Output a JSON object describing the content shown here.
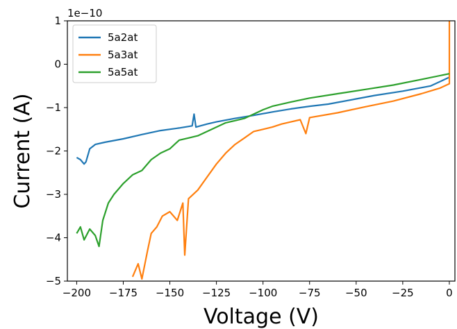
{
  "chart_data": {
    "type": "line",
    "xlabel": "Voltage (V)",
    "ylabel": "Current (A)",
    "y_offset_label": "1e−10",
    "xlim": [
      -205,
      3
    ],
    "ylim": [
      -5,
      1
    ],
    "x_ticks": [
      -200,
      -175,
      -150,
      -125,
      -100,
      -75,
      -50,
      -25,
      0
    ],
    "x_tick_labels": [
      "−200",
      "−175",
      "−150",
      "−125",
      "−100",
      "−75",
      "−50",
      "−25",
      "0"
    ],
    "y_ticks": [
      1,
      0,
      -1,
      -2,
      -3,
      -4,
      -5
    ],
    "y_tick_labels": [
      "1",
      "0",
      "−1",
      "−2",
      "−3",
      "−4",
      "−5"
    ],
    "grid": false,
    "legend_position": "top-left",
    "series": [
      {
        "name": "5a2at",
        "color": "#1f77b4",
        "points": [
          [
            -200,
            -2.15
          ],
          [
            -198,
            -2.2
          ],
          [
            -196,
            -2.3
          ],
          [
            -195,
            -2.25
          ],
          [
            -193,
            -1.95
          ],
          [
            -190,
            -1.85
          ],
          [
            -185,
            -1.8
          ],
          [
            -175,
            -1.72
          ],
          [
            -165,
            -1.62
          ],
          [
            -155,
            -1.53
          ],
          [
            -145,
            -1.47
          ],
          [
            -138,
            -1.42
          ],
          [
            -137,
            -1.15
          ],
          [
            -136,
            -1.45
          ],
          [
            -130,
            -1.38
          ],
          [
            -125,
            -1.33
          ],
          [
            -115,
            -1.25
          ],
          [
            -105,
            -1.18
          ],
          [
            -95,
            -1.1
          ],
          [
            -85,
            -1.03
          ],
          [
            -75,
            -0.97
          ],
          [
            -65,
            -0.92
          ],
          [
            -50,
            -0.8
          ],
          [
            -40,
            -0.72
          ],
          [
            -25,
            -0.62
          ],
          [
            -10,
            -0.5
          ],
          [
            0,
            -0.3
          ]
        ]
      },
      {
        "name": "5a3at",
        "color": "#ff7f0e",
        "points": [
          [
            -170,
            -4.9
          ],
          [
            -167,
            -4.6
          ],
          [
            -165,
            -4.95
          ],
          [
            -162,
            -4.3
          ],
          [
            -160,
            -3.9
          ],
          [
            -157,
            -3.75
          ],
          [
            -154,
            -3.5
          ],
          [
            -150,
            -3.4
          ],
          [
            -146,
            -3.6
          ],
          [
            -143,
            -3.2
          ],
          [
            -142,
            -4.4
          ],
          [
            -140,
            -3.1
          ],
          [
            -135,
            -2.9
          ],
          [
            -130,
            -2.6
          ],
          [
            -125,
            -2.3
          ],
          [
            -120,
            -2.05
          ],
          [
            -115,
            -1.85
          ],
          [
            -110,
            -1.7
          ],
          [
            -105,
            -1.55
          ],
          [
            -100,
            -1.5
          ],
          [
            -95,
            -1.45
          ],
          [
            -90,
            -1.38
          ],
          [
            -85,
            -1.33
          ],
          [
            -80,
            -1.28
          ],
          [
            -77,
            -1.6
          ],
          [
            -75,
            -1.23
          ],
          [
            -60,
            -1.12
          ],
          [
            -45,
            -0.98
          ],
          [
            -30,
            -0.85
          ],
          [
            -15,
            -0.68
          ],
          [
            -5,
            -0.55
          ],
          [
            0,
            -0.45
          ],
          [
            0,
            1.0
          ]
        ]
      },
      {
        "name": "5a5at",
        "color": "#2ca02c",
        "points": [
          [
            -200,
            -3.9
          ],
          [
            -198,
            -3.75
          ],
          [
            -196,
            -4.05
          ],
          [
            -193,
            -3.8
          ],
          [
            -190,
            -3.95
          ],
          [
            -188,
            -4.2
          ],
          [
            -186,
            -3.6
          ],
          [
            -183,
            -3.2
          ],
          [
            -180,
            -3.0
          ],
          [
            -175,
            -2.75
          ],
          [
            -170,
            -2.55
          ],
          [
            -165,
            -2.45
          ],
          [
            -160,
            -2.2
          ],
          [
            -155,
            -2.05
          ],
          [
            -150,
            -1.95
          ],
          [
            -145,
            -1.75
          ],
          [
            -140,
            -1.7
          ],
          [
            -135,
            -1.65
          ],
          [
            -130,
            -1.55
          ],
          [
            -125,
            -1.45
          ],
          [
            -120,
            -1.35
          ],
          [
            -115,
            -1.3
          ],
          [
            -110,
            -1.25
          ],
          [
            -105,
            -1.15
          ],
          [
            -100,
            -1.05
          ],
          [
            -95,
            -0.97
          ],
          [
            -85,
            -0.87
          ],
          [
            -75,
            -0.78
          ],
          [
            -60,
            -0.68
          ],
          [
            -45,
            -0.58
          ],
          [
            -30,
            -0.48
          ],
          [
            -15,
            -0.35
          ],
          [
            0,
            -0.22
          ]
        ]
      }
    ]
  }
}
